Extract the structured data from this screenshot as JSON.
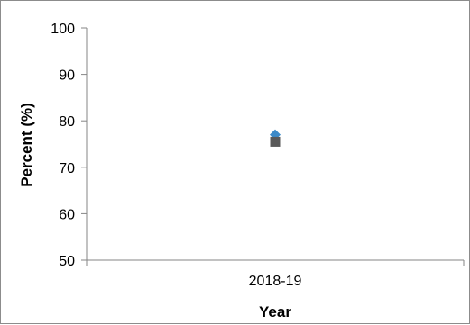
{
  "chart_data": {
    "type": "scatter",
    "title": "",
    "xlabel": "Year",
    "ylabel": "Percent (%)",
    "categories": [
      "2018-19"
    ],
    "ylim": [
      50,
      100
    ],
    "yticks": [
      50,
      60,
      70,
      80,
      90,
      100
    ],
    "grid": false,
    "legend": "none",
    "series": [
      {
        "values": [
          77
        ],
        "marker": "diamond",
        "color": "#3d8ac8"
      },
      {
        "values": [
          75.5
        ],
        "marker": "square",
        "color": "#595959"
      }
    ]
  }
}
